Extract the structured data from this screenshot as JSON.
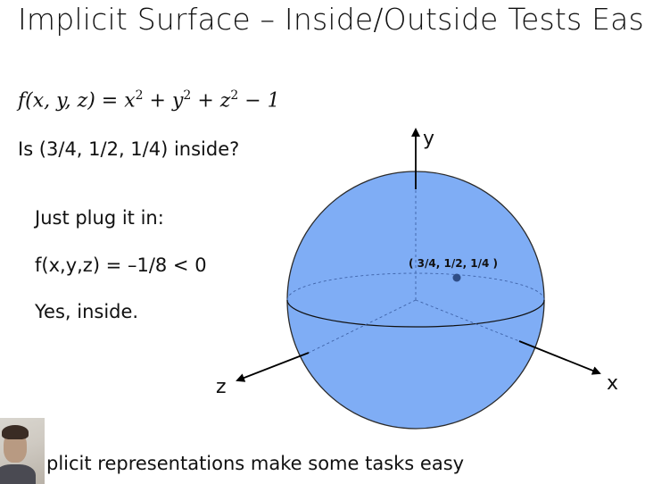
{
  "slide": {
    "title": "Implicit Surface – Inside/Outside Tests Easy",
    "question": "Is (3/4, 1/2, 1/4) inside?",
    "line1": "Just plug it in:",
    "line2": "f(x,y,z) = –1/8 < 0",
    "line3": "Yes, inside.",
    "bottom_text": "plicit representations make some tasks easy"
  },
  "formula": {
    "lhs": "f(x, y, z) = x",
    "plus_y": " + y",
    "plus_z": " + z",
    "minus_one": " − 1",
    "exp": "2"
  },
  "figure": {
    "axis_y": "y",
    "axis_x": "x",
    "axis_z": "z",
    "point_label": "( 3/4, 1/2, 1/4 )",
    "sphere_color": "#7fadf5"
  }
}
